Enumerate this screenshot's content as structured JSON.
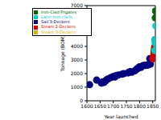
{
  "chart_data": {
    "type": "scatter",
    "x_label": "Year launched",
    "y_label": "Tonnage (BOM)",
    "xlim": [
      1600,
      1860
    ],
    "xticks": [
      1600,
      1650,
      1700,
      1750,
      1800,
      1850
    ],
    "ylim": [
      0,
      7000
    ],
    "yticks": [
      0,
      1000,
      2000,
      3000,
      4000,
      5000,
      6000,
      7000
    ],
    "grid": false,
    "legend": "upper left",
    "marker": "circle",
    "series": [
      {
        "name": "Sail 3-Deckers",
        "color": "#000080",
        "x": [
          1610,
          1637,
          1655,
          1660,
          1665,
          1670,
          1675,
          1680,
          1690,
          1701,
          1706,
          1710,
          1719,
          1733,
          1740,
          1756,
          1759,
          1765,
          1770,
          1782,
          1788,
          1790,
          1795,
          1800,
          1805,
          1810,
          1815,
          1820,
          1825,
          1830,
          1833,
          1839,
          1841,
          1845,
          1850
        ],
        "values": [
          1187,
          1522,
          1300,
          1400,
          1350,
          1450,
          1550,
          1600,
          1700,
          1800,
          1750,
          1850,
          1900,
          1950,
          2000,
          2050,
          2100,
          2150,
          2100,
          2200,
          2300,
          2350,
          2400,
          2500,
          2450,
          2550,
          2600,
          2600,
          2600,
          2650,
          2650,
          3100,
          2700,
          3050,
          3100
        ]
      },
      {
        "name": "Steam 3-Deckers",
        "color": "#d4b000",
        "x": [
          1852,
          1853,
          1855,
          1856
        ],
        "values": [
          3100,
          3400,
          3700,
          3900
        ]
      },
      {
        "name": "Steam 2-Deckers",
        "color": "#cc0000",
        "x": [
          1850,
          1852,
          1854,
          1855,
          1857,
          1858
        ],
        "values": [
          3100,
          3200,
          3300,
          3600,
          3800,
          4000
        ]
      },
      {
        "name": "Iron-Clad Frigates",
        "color": "#006400",
        "x": [
          1859,
          1860,
          1861,
          1862,
          1863
        ],
        "values": [
          4500,
          6100,
          6600,
          6600,
          6600
        ]
      },
      {
        "name": "Later Iron-clads",
        "color": "#00cccc",
        "x": [
          1858,
          1859,
          1860,
          1861,
          1862
        ],
        "values": [
          3700,
          4300,
          4500,
          4200,
          5500
        ]
      }
    ]
  }
}
